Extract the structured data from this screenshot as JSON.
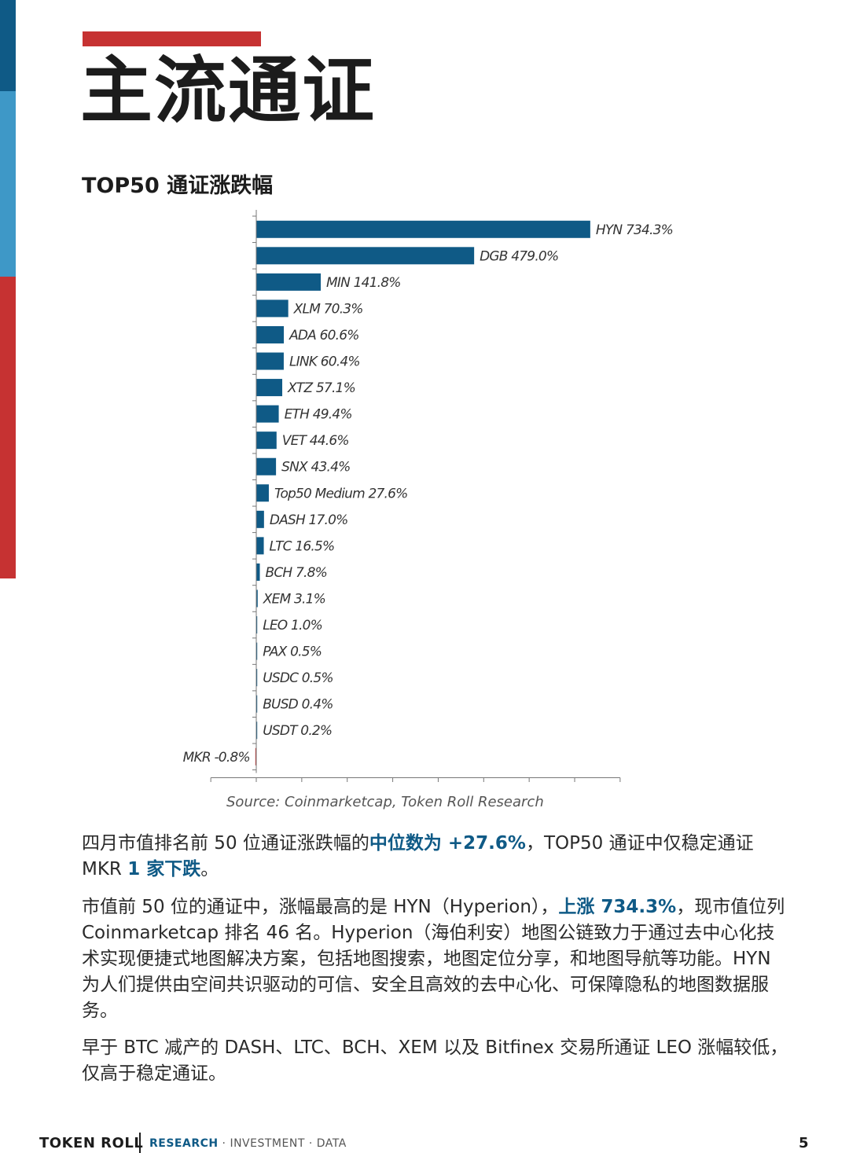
{
  "page": {
    "title": "主流通证",
    "chart_heading": "TOP50 通证涨跌幅",
    "source": "Source: Coinmarketcap, Token Roll Research",
    "page_number": "5"
  },
  "colors": {
    "positive_bar": "#0f5a86",
    "negative_bar": "#c63232",
    "stripe_dark_blue": "#0f5a86",
    "stripe_light_blue": "#3e98c7",
    "stripe_red": "#c63232",
    "highlight_text": "#0f5a86"
  },
  "paragraphs": {
    "p1": {
      "a": "四月市值排名前 50 位通证涨跌幅的",
      "b": "中位数为 +27.6%",
      "c": "，TOP50 通证中仅稳定通证 MKR ",
      "d": "1 家下跌",
      "e": "。"
    },
    "p2": {
      "a": "市值前 50 位的通证中，涨幅最高的是 HYN（Hyperion），",
      "b": "上涨 734.3%",
      "c": "，现市值位列 Coinmarketcap 排名 46 名。Hyperion（海伯利安）地图公链致力于通过去中心化技术实现便捷式地图解决方案，包括地图搜索，地图定位分享，和地图导航等功能。HYN 为人们提供由空间共识驱动的可信、安全且高效的去中心化、可保障隐私的地图数据服务。"
    },
    "p3": "早于 BTC 减产的 DASH、LTC、BCH、XEM 以及 Bitfinex 交易所通证 LEO 涨幅较低，仅高于稳定通证。"
  },
  "footer": {
    "brand": "TOKEN ROLL",
    "research": "RESEARCH",
    "rest": " · INVESTMENT · DATA"
  },
  "chart_data": {
    "type": "bar",
    "orientation": "horizontal",
    "title": "TOP50 通证涨跌幅",
    "categories": [
      "HYN",
      "DGB",
      "MIN",
      "XLM",
      "ADA",
      "LINK",
      "XTZ",
      "ETH",
      "VET",
      "SNX",
      "Top50 Medium",
      "DASH",
      "LTC",
      "BCH",
      "XEM",
      "LEO",
      "PAX",
      "USDC",
      "BUSD",
      "USDT",
      "MKR"
    ],
    "values": [
      734.3,
      479.0,
      141.8,
      70.3,
      60.6,
      60.4,
      57.1,
      49.4,
      44.6,
      43.4,
      27.6,
      17.0,
      16.5,
      7.8,
      3.1,
      1.0,
      0.5,
      0.5,
      0.4,
      0.2,
      -0.8
    ],
    "labels": [
      "HYN 734.3%",
      "DGB 479.0%",
      "MIN 141.8%",
      "XLM 70.3%",
      "ADA 60.6%",
      "LINK 60.4%",
      "XTZ 57.1%",
      "ETH 49.4%",
      "VET 44.6%",
      "SNX 43.4%",
      "Top50 Medium 27.6%",
      "DASH 17.0%",
      "LTC 16.5%",
      "BCH 7.8%",
      "XEM 3.1%",
      "LEO 1.0%",
      "PAX 0.5%",
      "USDC 0.5%",
      "BUSD 0.4%",
      "USDT 0.2%",
      "MKR -0.8%"
    ],
    "xlim": [
      -100,
      800
    ],
    "grid": false,
    "legend": "none",
    "xlabel": "",
    "ylabel": ""
  }
}
